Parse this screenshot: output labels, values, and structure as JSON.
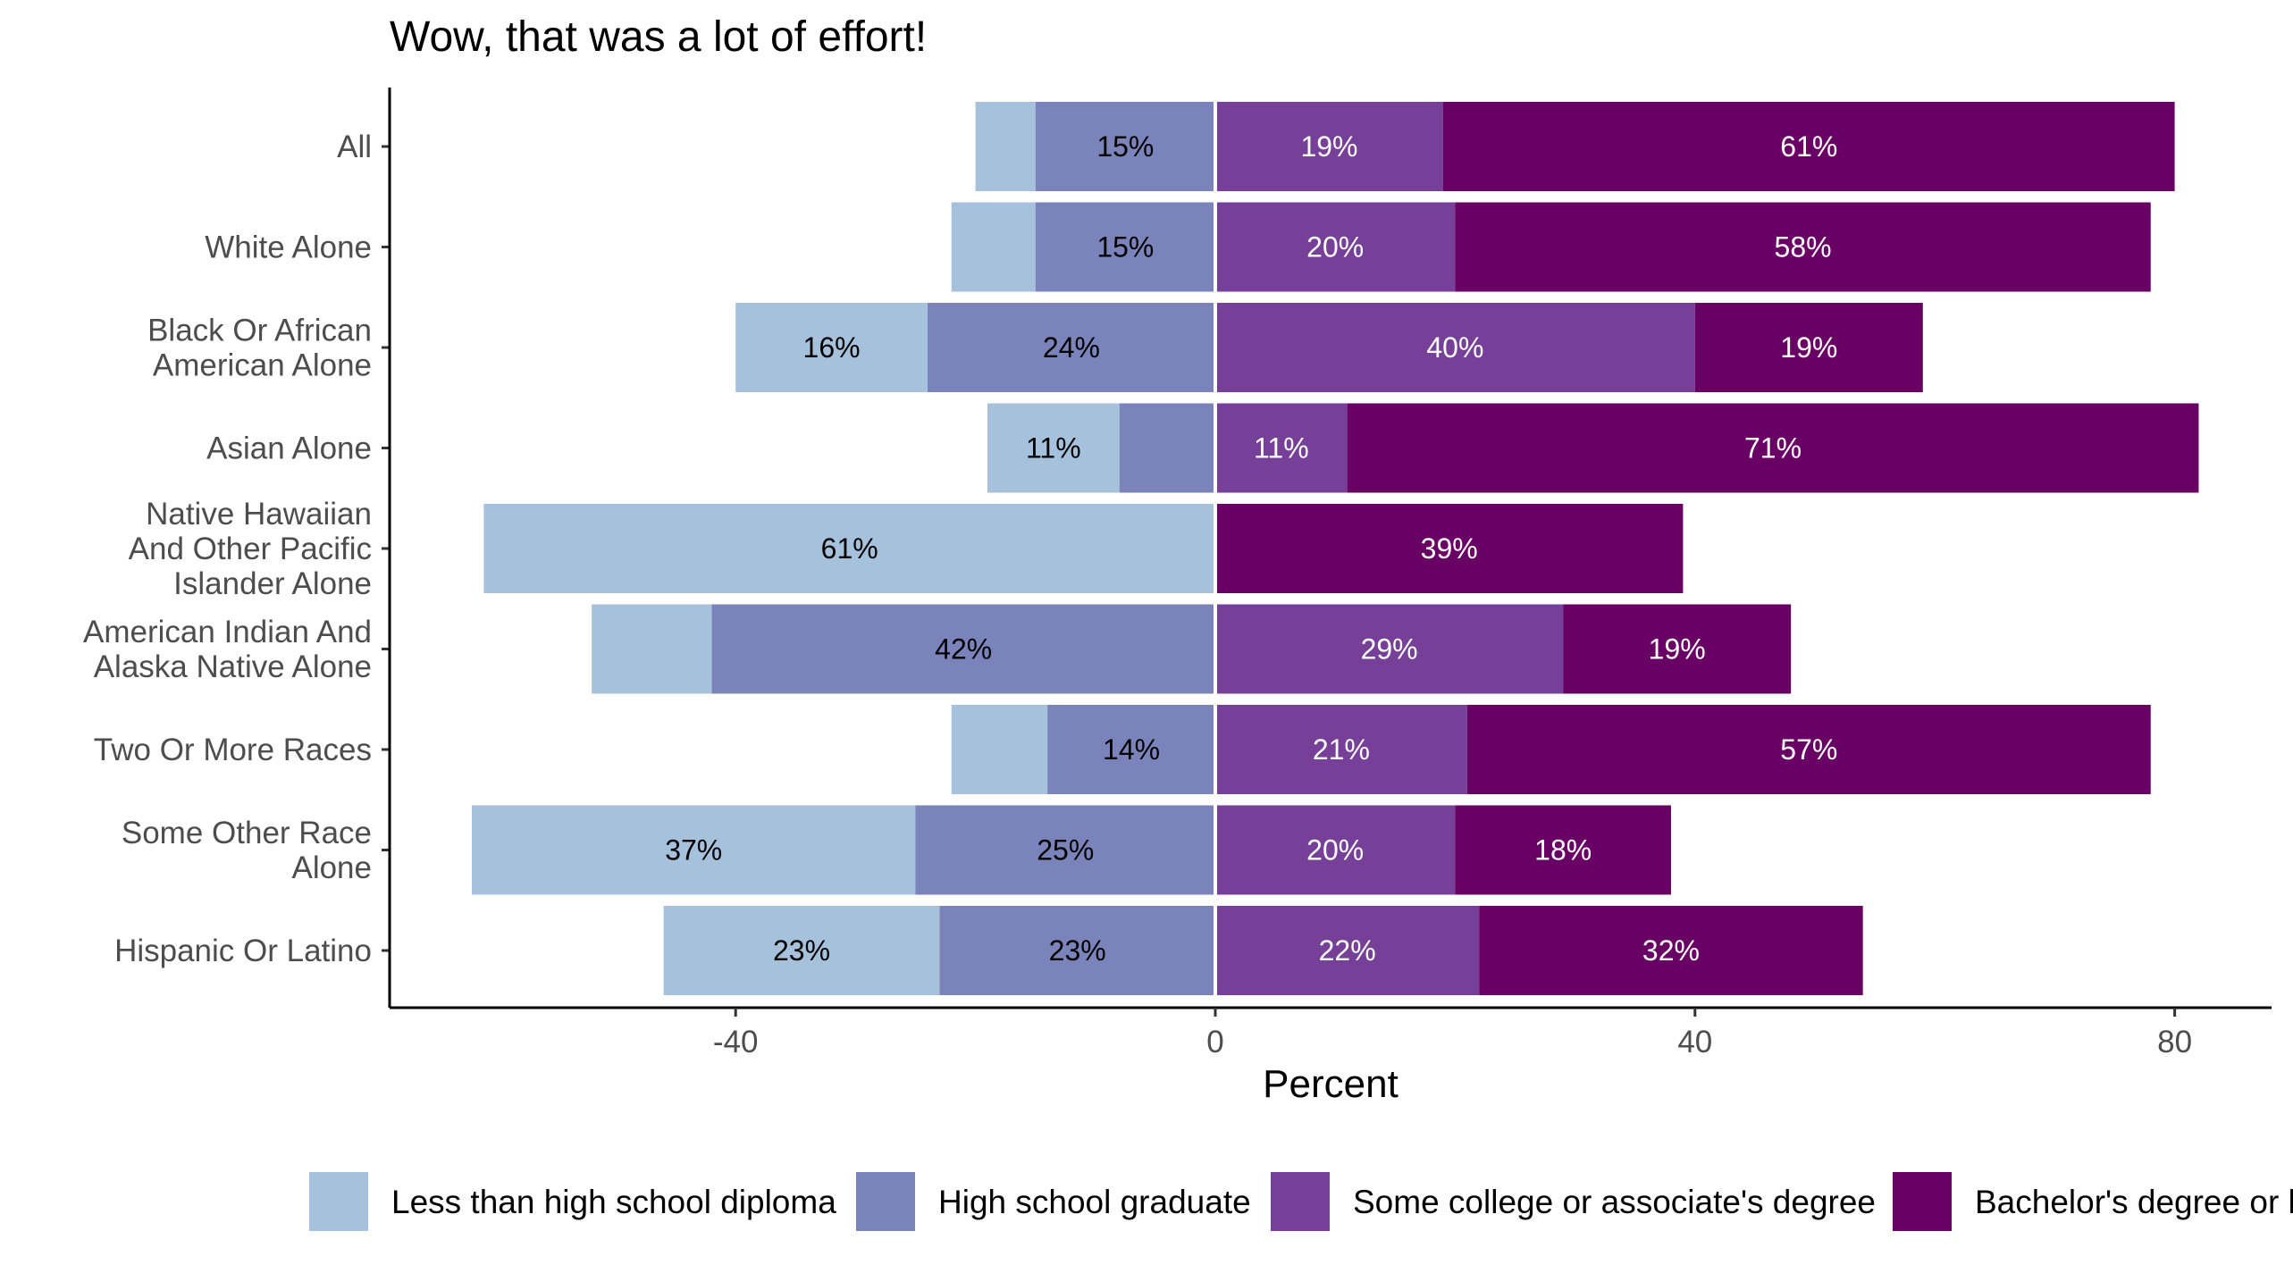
{
  "chart_data": {
    "type": "bar",
    "orientation": "horizontal",
    "stacking": "diverging",
    "title": "Wow, that was a lot of effort!",
    "xlabel": "Percent",
    "ylabel": "",
    "xlim": [
      -69,
      88
    ],
    "xticks": [
      -40,
      0,
      40,
      80
    ],
    "xtick_labels": [
      "-40",
      "0",
      "40",
      "80"
    ],
    "grid": false,
    "legend_position": "bottom",
    "categories": [
      "All",
      "White Alone",
      "Black Or African American Alone",
      "Asian Alone",
      "Native Hawaiian And Other Pacific Islander Alone",
      "American Indian And Alaska Native Alone",
      "Two Or More Races",
      "Some Other Race Alone",
      "Hispanic Or Latino"
    ],
    "category_lines": [
      [
        "All"
      ],
      [
        "White Alone"
      ],
      [
        "Black Or African",
        "American Alone"
      ],
      [
        "Asian Alone"
      ],
      [
        "Native Hawaiian",
        "And Other Pacific",
        "Islander Alone"
      ],
      [
        "American Indian And",
        "Alaska Native Alone"
      ],
      [
        "Two Or More Races"
      ],
      [
        "Some Other Race",
        "Alone"
      ],
      [
        "Hispanic Or Latino"
      ]
    ],
    "series": [
      {
        "name": "Less than high school diploma",
        "side": "negative",
        "color": "#a6c1dc",
        "text_color": "#000000",
        "values": [
          5,
          7,
          16,
          11,
          61,
          10,
          8,
          37,
          23
        ],
        "labels": [
          "",
          "",
          "16%",
          "11%",
          "61%",
          "",
          "",
          "37%",
          "23%"
        ]
      },
      {
        "name": "High school graduate",
        "side": "negative",
        "color": "#7b84ba",
        "text_color": "#000000",
        "values": [
          15,
          15,
          24,
          8,
          0,
          42,
          14,
          25,
          23
        ],
        "labels": [
          "15%",
          "15%",
          "24%",
          "",
          "",
          "42%",
          "14%",
          "25%",
          "23%"
        ]
      },
      {
        "name": "Some college or associate's degree",
        "side": "positive",
        "color": "#763f98",
        "text_color": "#ffffff",
        "values": [
          19,
          20,
          40,
          11,
          0,
          29,
          21,
          20,
          22
        ],
        "labels": [
          "19%",
          "20%",
          "40%",
          "11%",
          "",
          "29%",
          "21%",
          "20%",
          "22%"
        ]
      },
      {
        "name": "Bachelor's degree or higher",
        "side": "positive",
        "color": "#690064",
        "text_color": "#ffffff",
        "values": [
          61,
          58,
          19,
          71,
          39,
          19,
          57,
          18,
          32
        ],
        "labels": [
          "61%",
          "58%",
          "19%",
          "71%",
          "39%",
          "19%",
          "57%",
          "18%",
          "32%"
        ]
      }
    ],
    "legend": [
      "Less than high school diploma",
      "High school graduate",
      "Some college or associate's degree",
      "Bachelor's degree or h"
    ]
  }
}
